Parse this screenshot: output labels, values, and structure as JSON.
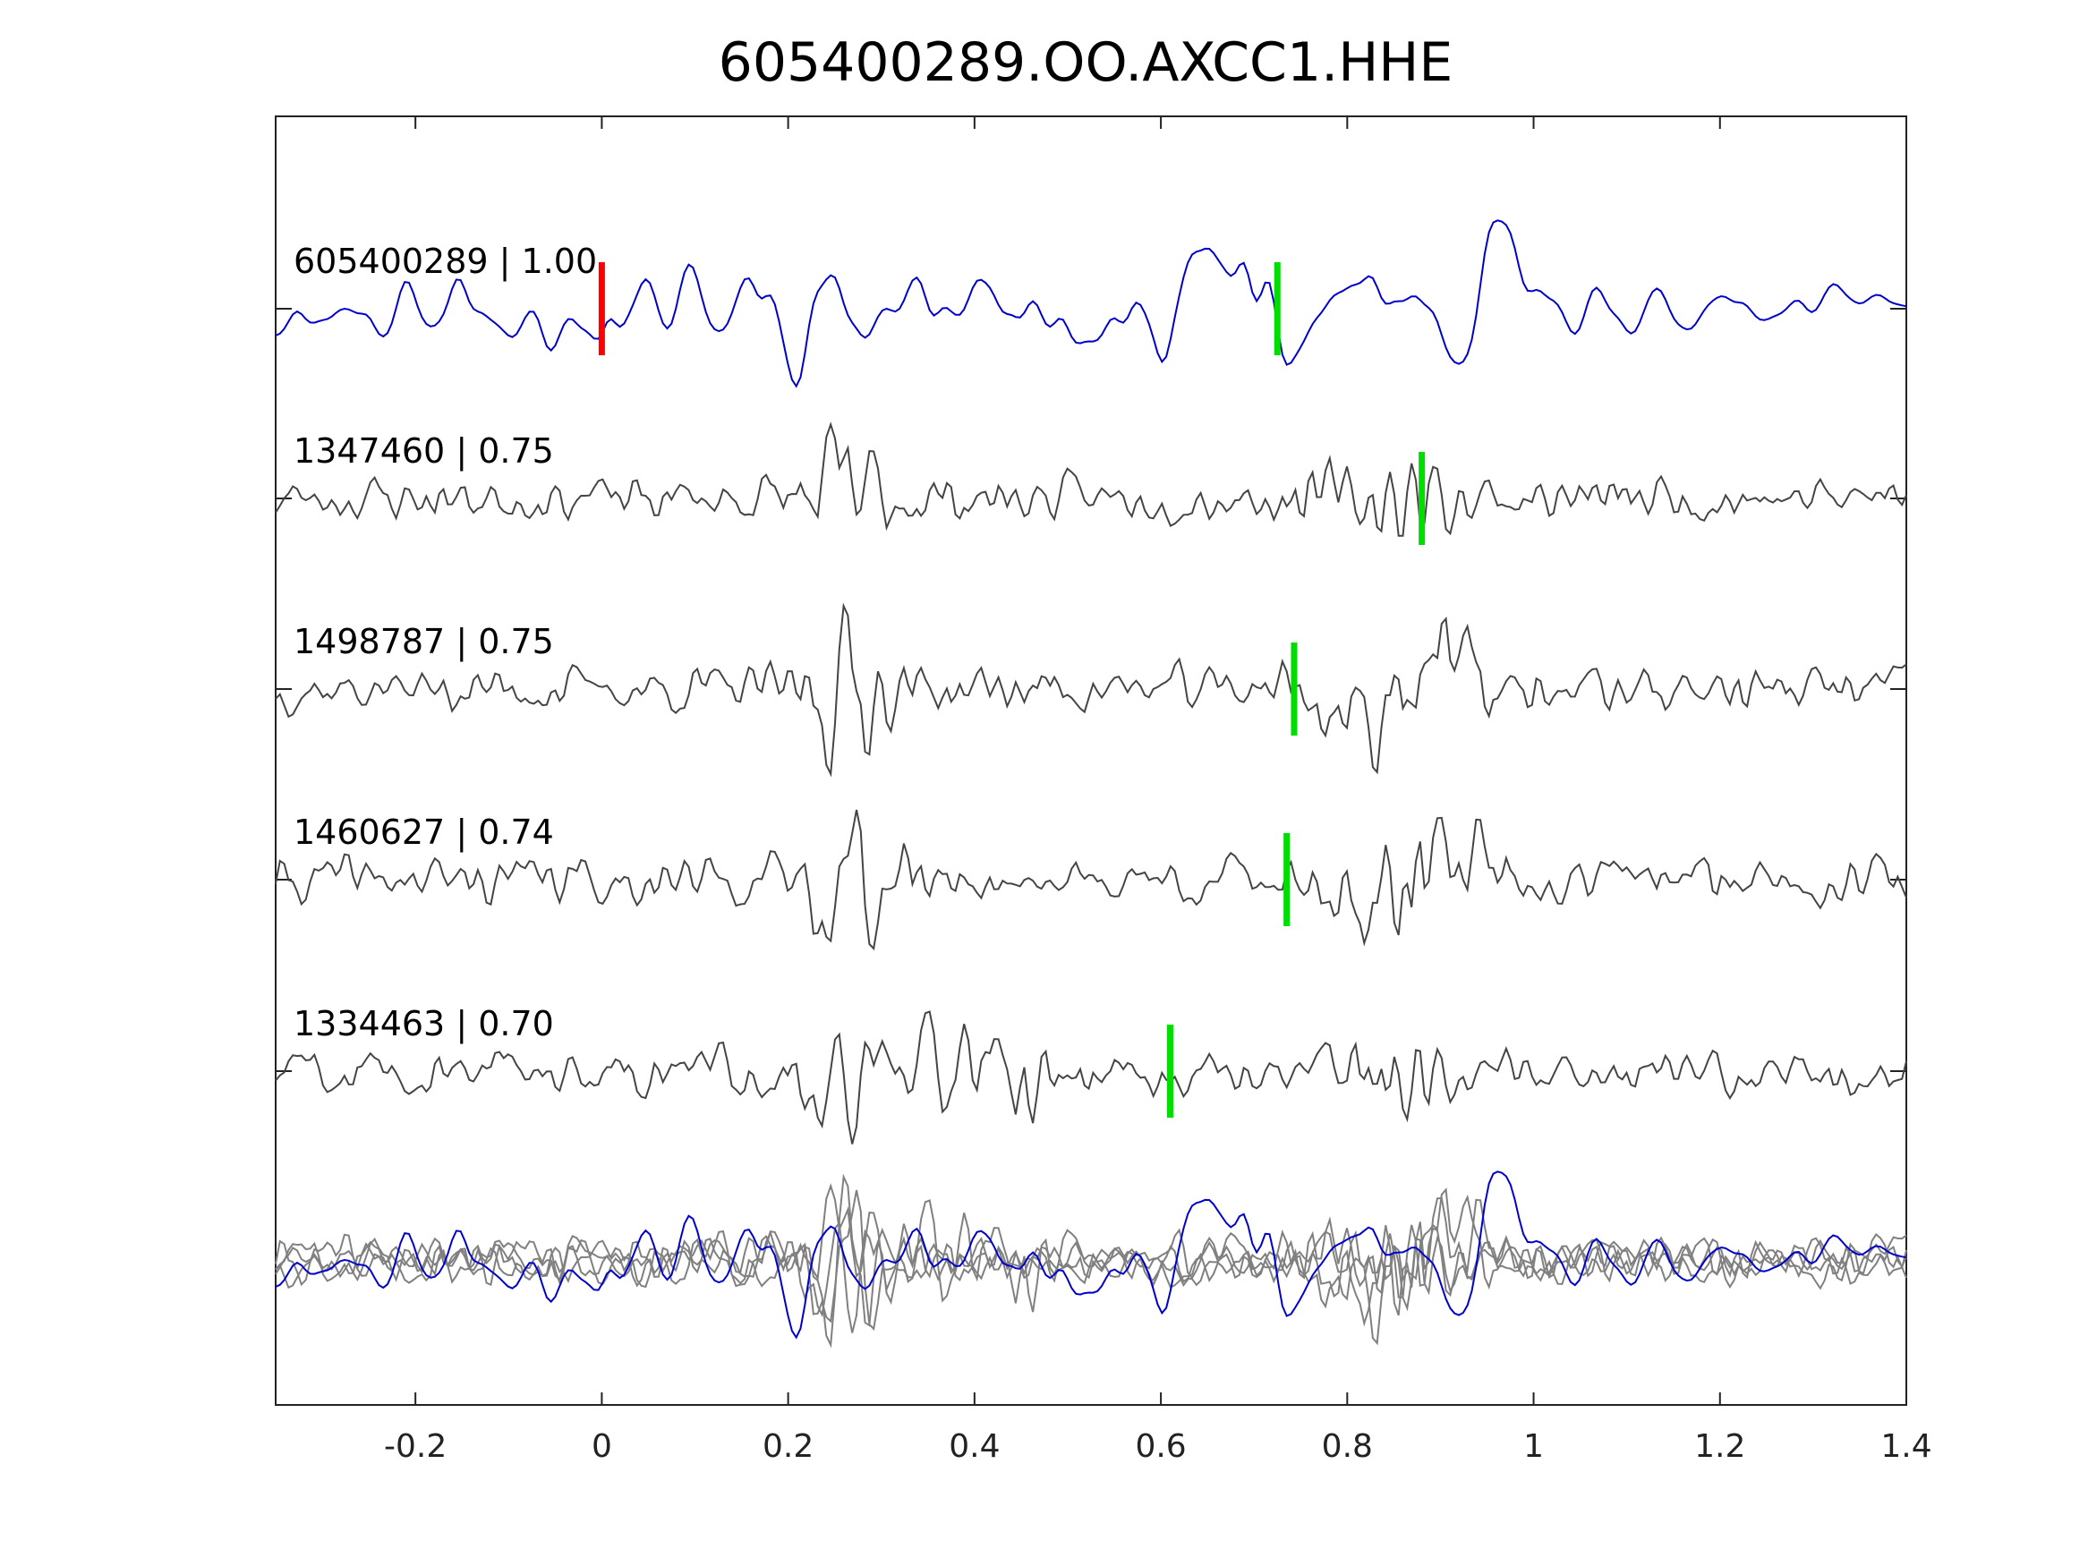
{
  "chart_data": {
    "type": "line",
    "title": "605400289.OO.AXCC1.HHE",
    "xlabel": "",
    "ylabel": "",
    "xlim": [
      -0.35,
      1.4
    ],
    "xticks": [
      -0.2,
      0,
      0.2,
      0.4,
      0.6,
      0.8,
      1,
      1.2,
      1.4
    ],
    "xtick_labels": [
      "-0.2",
      "0",
      "0.2",
      "0.4",
      "0.6",
      "0.8",
      "1",
      "1.2",
      "1.4"
    ],
    "grid": false,
    "colors": {
      "template": "#0000cc",
      "match": "#444444",
      "overlay": "#808080",
      "origin_marker": "#ff0000",
      "pick_marker": "#00dd00"
    },
    "traces": [
      {
        "label": "605400289 | 1.00",
        "kind": "template",
        "origin_marker_x": 0.0,
        "pick_marker_x": 0.725
      },
      {
        "label": "1347460 | 0.75",
        "kind": "match",
        "pick_marker_x": 0.88
      },
      {
        "label": "1498787 | 0.75",
        "kind": "match",
        "pick_marker_x": 0.743
      },
      {
        "label": "1460627 | 0.74",
        "kind": "match",
        "pick_marker_x": 0.735
      },
      {
        "label": "1334463 | 0.70",
        "kind": "match",
        "pick_marker_x": 0.61
      }
    ],
    "overlay": {
      "kind": "stack"
    }
  }
}
